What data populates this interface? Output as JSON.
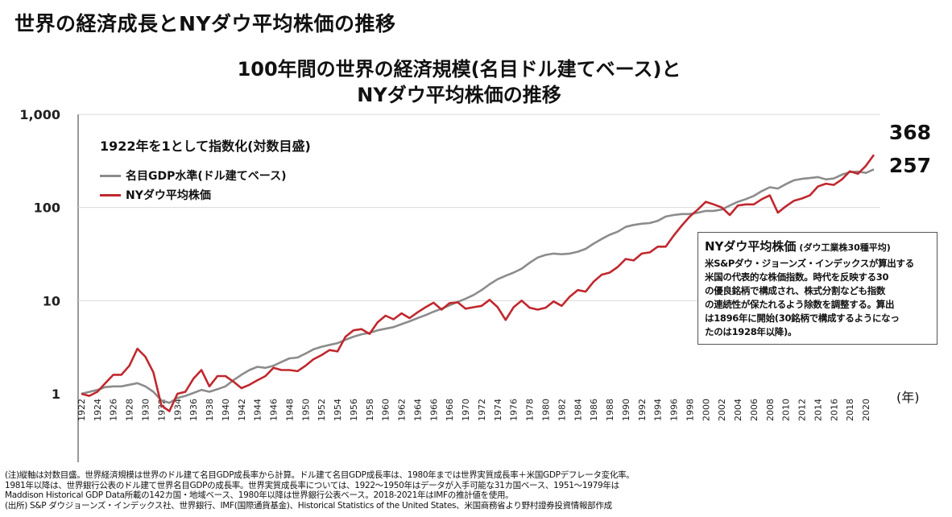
{
  "page": {
    "heading": "世界の経済成長とNYダウ平均株価の推移"
  },
  "chart_data": {
    "type": "line",
    "title_lines": [
      "100年間の世界の経済規模(名目ドル建てベース)と",
      "NYダウ平均株価の推移"
    ],
    "note": "1922年を1として指数化(対数目盛)",
    "x_unit_label": "(年)",
    "yscale": "log",
    "ylim": [
      1,
      1000
    ],
    "yticks": [
      1,
      10,
      100,
      1000
    ],
    "ytick_labels": [
      "1",
      "10",
      "100",
      "1,000"
    ],
    "xlim": [
      1922,
      2021
    ],
    "xticks": [
      1922,
      1924,
      1926,
      1928,
      1930,
      1932,
      1934,
      1936,
      1938,
      1940,
      1942,
      1944,
      1946,
      1948,
      1950,
      1952,
      1954,
      1956,
      1958,
      1960,
      1962,
      1964,
      1966,
      1968,
      1970,
      1972,
      1974,
      1976,
      1978,
      1980,
      1982,
      1984,
      1986,
      1988,
      1990,
      1992,
      1994,
      1996,
      1998,
      2000,
      2002,
      2004,
      2006,
      2008,
      2010,
      2012,
      2014,
      2016,
      2018,
      2020
    ],
    "legend_placement": "top-left",
    "series": [
      {
        "name": "名目GDP水準(ドル建てベース)",
        "color": "#8c8c8c",
        "end_label": "257",
        "points": [
          [
            1922,
            1
          ],
          [
            1924,
            1.1
          ],
          [
            1925,
            1.18
          ],
          [
            1926,
            1.2
          ],
          [
            1927,
            1.2
          ],
          [
            1928,
            1.25
          ],
          [
            1929,
            1.3
          ],
          [
            1930,
            1.2
          ],
          [
            1931,
            1.05
          ],
          [
            1932,
            0.85
          ],
          [
            1933,
            0.8
          ],
          [
            1934,
            0.9
          ],
          [
            1935,
            0.95
          ],
          [
            1936,
            1.02
          ],
          [
            1937,
            1.1
          ],
          [
            1938,
            1.05
          ],
          [
            1939,
            1.12
          ],
          [
            1940,
            1.2
          ],
          [
            1941,
            1.4
          ],
          [
            1942,
            1.6
          ],
          [
            1943,
            1.8
          ],
          [
            1944,
            1.95
          ],
          [
            1945,
            1.9
          ],
          [
            1946,
            2.0
          ],
          [
            1947,
            2.2
          ],
          [
            1948,
            2.4
          ],
          [
            1949,
            2.45
          ],
          [
            1950,
            2.7
          ],
          [
            1951,
            3.0
          ],
          [
            1952,
            3.2
          ],
          [
            1953,
            3.35
          ],
          [
            1954,
            3.5
          ],
          [
            1955,
            3.8
          ],
          [
            1956,
            4.1
          ],
          [
            1957,
            4.35
          ],
          [
            1958,
            4.5
          ],
          [
            1959,
            4.8
          ],
          [
            1960,
            5.0
          ],
          [
            1961,
            5.2
          ],
          [
            1962,
            5.6
          ],
          [
            1963,
            6.0
          ],
          [
            1964,
            6.5
          ],
          [
            1965,
            7.0
          ],
          [
            1966,
            7.6
          ],
          [
            1967,
            8.2
          ],
          [
            1968,
            8.9
          ],
          [
            1969,
            9.7
          ],
          [
            1970,
            10.5
          ],
          [
            1971,
            11.5
          ],
          [
            1972,
            13.0
          ],
          [
            1973,
            15.0
          ],
          [
            1974,
            17.0
          ],
          [
            1975,
            18.5
          ],
          [
            1976,
            20.0
          ],
          [
            1977,
            22.0
          ],
          [
            1978,
            25.5
          ],
          [
            1979,
            29.0
          ],
          [
            1980,
            31.0
          ],
          [
            1981,
            32.0
          ],
          [
            1982,
            31.5
          ],
          [
            1983,
            32.0
          ],
          [
            1984,
            33.5
          ],
          [
            1985,
            36.0
          ],
          [
            1986,
            41.0
          ],
          [
            1987,
            46.0
          ],
          [
            1988,
            51.0
          ],
          [
            1989,
            55.0
          ],
          [
            1990,
            62.0
          ],
          [
            1991,
            65.0
          ],
          [
            1992,
            67.0
          ],
          [
            1993,
            68.0
          ],
          [
            1994,
            72.0
          ],
          [
            1995,
            80.0
          ],
          [
            1996,
            83.0
          ],
          [
            1997,
            85.0
          ],
          [
            1998,
            85.0
          ],
          [
            1999,
            88.0
          ],
          [
            2000,
            92.0
          ],
          [
            2001,
            92.0
          ],
          [
            2002,
            95.0
          ],
          [
            2003,
            105.0
          ],
          [
            2004,
            115.0
          ],
          [
            2005,
            123.0
          ],
          [
            2006,
            133.0
          ],
          [
            2007,
            150.0
          ],
          [
            2008,
            165.0
          ],
          [
            2009,
            160.0
          ],
          [
            2010,
            178.0
          ],
          [
            2011,
            196.0
          ],
          [
            2012,
            203.0
          ],
          [
            2013,
            207.0
          ],
          [
            2014,
            212.0
          ],
          [
            2015,
            200.0
          ],
          [
            2016,
            205.0
          ],
          [
            2017,
            225.0
          ],
          [
            2018,
            240.0
          ],
          [
            2019,
            243.0
          ],
          [
            2020,
            235.0
          ],
          [
            2021,
            257.0
          ]
        ]
      },
      {
        "name": "NYダウ平均株価",
        "color": "#c0282e",
        "end_label": "368",
        "points": [
          [
            1922,
            1
          ],
          [
            1923,
            0.95
          ],
          [
            1924,
            1.05
          ],
          [
            1925,
            1.3
          ],
          [
            1926,
            1.6
          ],
          [
            1927,
            1.6
          ],
          [
            1928,
            2.0
          ],
          [
            1929,
            3.05
          ],
          [
            1930,
            2.5
          ],
          [
            1931,
            1.7
          ],
          [
            1932,
            0.75
          ],
          [
            1933,
            0.65
          ],
          [
            1934,
            1.0
          ],
          [
            1935,
            1.05
          ],
          [
            1936,
            1.45
          ],
          [
            1937,
            1.8
          ],
          [
            1938,
            1.2
          ],
          [
            1939,
            1.55
          ],
          [
            1940,
            1.55
          ],
          [
            1941,
            1.35
          ],
          [
            1942,
            1.15
          ],
          [
            1943,
            1.25
          ],
          [
            1944,
            1.4
          ],
          [
            1945,
            1.55
          ],
          [
            1946,
            1.9
          ],
          [
            1947,
            1.8
          ],
          [
            1948,
            1.8
          ],
          [
            1949,
            1.75
          ],
          [
            1950,
            2.0
          ],
          [
            1951,
            2.35
          ],
          [
            1952,
            2.6
          ],
          [
            1953,
            2.95
          ],
          [
            1954,
            2.85
          ],
          [
            1955,
            4.1
          ],
          [
            1956,
            4.8
          ],
          [
            1957,
            4.95
          ],
          [
            1958,
            4.4
          ],
          [
            1959,
            5.85
          ],
          [
            1960,
            6.9
          ],
          [
            1961,
            6.3
          ],
          [
            1962,
            7.3
          ],
          [
            1963,
            6.5
          ],
          [
            1964,
            7.5
          ],
          [
            1965,
            8.5
          ],
          [
            1966,
            9.5
          ],
          [
            1967,
            8.0
          ],
          [
            1968,
            9.4
          ],
          [
            1969,
            9.6
          ],
          [
            1970,
            8.2
          ],
          [
            1971,
            8.5
          ],
          [
            1972,
            8.8
          ],
          [
            1973,
            10.2
          ],
          [
            1974,
            8.5
          ],
          [
            1975,
            6.2
          ],
          [
            1976,
            8.5
          ],
          [
            1977,
            10.0
          ],
          [
            1978,
            8.4
          ],
          [
            1979,
            8.0
          ],
          [
            1980,
            8.4
          ],
          [
            1981,
            9.8
          ],
          [
            1982,
            8.8
          ],
          [
            1983,
            11.0
          ],
          [
            1984,
            13.0
          ],
          [
            1985,
            12.5
          ],
          [
            1986,
            16.0
          ],
          [
            1987,
            19.0
          ],
          [
            1988,
            20.0
          ],
          [
            1989,
            23.0
          ],
          [
            1990,
            28.0
          ],
          [
            1991,
            27.0
          ],
          [
            1992,
            32.0
          ],
          [
            1993,
            33.0
          ],
          [
            1994,
            38.0
          ],
          [
            1995,
            38.0
          ],
          [
            1996,
            50.0
          ],
          [
            1997,
            64.0
          ],
          [
            1998,
            80.0
          ],
          [
            1999,
            95.0
          ],
          [
            2000,
            115.0
          ],
          [
            2001,
            108.0
          ],
          [
            2002,
            100.0
          ],
          [
            2003,
            83.0
          ],
          [
            2004,
            105.0
          ],
          [
            2005,
            108.0
          ],
          [
            2006,
            108.0
          ],
          [
            2007,
            123.0
          ],
          [
            2008,
            135.0
          ],
          [
            2009,
            88.0
          ],
          [
            2010,
            103.0
          ],
          [
            2011,
            118.0
          ],
          [
            2012,
            125.0
          ],
          [
            2013,
            135.0
          ],
          [
            2014,
            168.0
          ],
          [
            2015,
            180.0
          ],
          [
            2016,
            175.0
          ],
          [
            2017,
            200.0
          ],
          [
            2018,
            245.0
          ],
          [
            2019,
            230.0
          ],
          [
            2020,
            280.0
          ],
          [
            2021,
            368.0
          ]
        ]
      }
    ]
  },
  "info_box": {
    "title": "NYダウ平均株価",
    "subtitle": "(ダウ工業株30種平均)",
    "lines": [
      "米S&Pダウ・ジョーンズ・インデックスが算出する",
      "米国の代表的な株価指数。時代を反映する30",
      "の優良銘柄で構成され、株式分割なども指数",
      "の連続性が保たれるよう除数を調整する。算出",
      "は1896年に開始(30銘柄で構成するようになっ",
      "たのは1928年以降)。"
    ]
  },
  "footnotes": [
    "(注)縦軸は対数目盛。世界経済規模は世界のドル建て名目GDP成長率から計算。ドル建て名目GDP成長率は、1980年までは世界実質成長率＋米国GDPデフレータ変化率。",
    "1981年以降は、世界銀行公表のドル建て世界名目GDPの成長率。世界実質成長率については、1922～1950年はデータが入手可能な31カ国ベース、1951～1979年は",
    "Maddison Historical GDP Data所載の142カ国・地域ベース、1980年以降は世界銀行公表ベース。2018-2021年はIMFの推計値を使用。",
    "(出所) S&P ダウジョーンズ・インデックス社、世界銀行、IMF(国際通貨基金)、Historical Statistics of the United States、米国商務省より野村證券投資情報部作成"
  ]
}
